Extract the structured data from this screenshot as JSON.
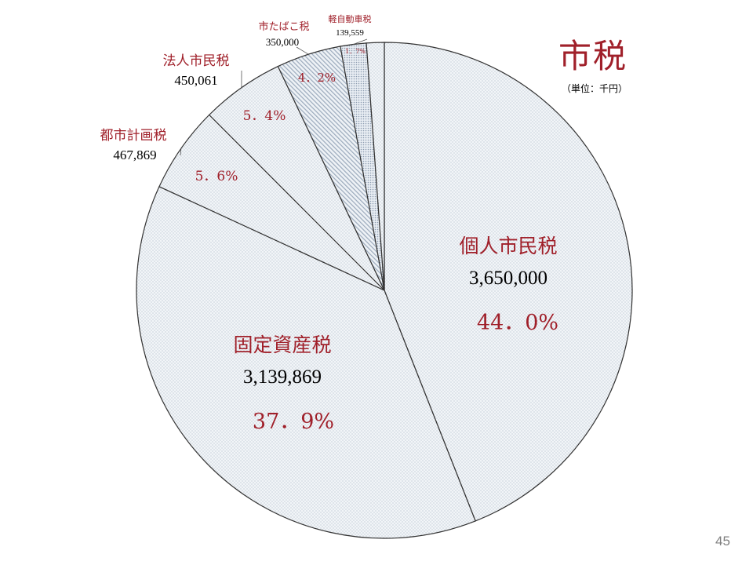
{
  "slide": {
    "title": "市税",
    "unit": "（単位：千円）",
    "page_number": "45"
  },
  "colors": {
    "accent": "#a0202a",
    "slice_fill": "#f2f5f8",
    "slice_dots": "#aeb9c6",
    "outline": "#333333"
  },
  "chart_data": {
    "type": "pie",
    "title": "市税",
    "unit": "（単位：千円）",
    "slices": [
      {
        "label": "個人市民税",
        "value": 3650000,
        "value_text": "3,650,000",
        "percent_text": "44．0%",
        "pattern": "dots"
      },
      {
        "label": "固定資産税",
        "value": 3139869,
        "value_text": "3,139,869",
        "percent_text": "37．9%",
        "pattern": "dots"
      },
      {
        "label": "都市計画税",
        "value": 467869,
        "value_text": "467,869",
        "percent_text": "5．6%",
        "pattern": "dots"
      },
      {
        "label": "法人市民税",
        "value": 450061,
        "value_text": "450,061",
        "percent_text": "5．4%",
        "pattern": "dots"
      },
      {
        "label": "市たばこ税",
        "value": 350000,
        "value_text": "350,000",
        "percent_text": "4．2%",
        "pattern": "hatch"
      },
      {
        "label": "軽自動車税",
        "value": 139559,
        "value_text": "139,559",
        "percent_text": "1．7%",
        "pattern": "dense"
      },
      {
        "label": "",
        "value": 96000,
        "value_text": "",
        "percent_text": "",
        "pattern": "dots"
      }
    ]
  }
}
